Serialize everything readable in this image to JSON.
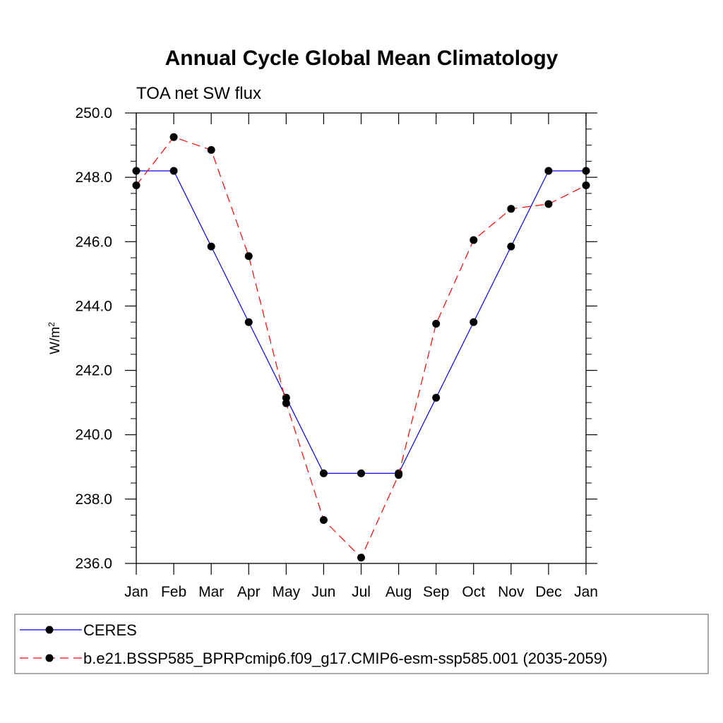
{
  "chart_data": {
    "type": "line",
    "title": "Annual Cycle Global Mean Climatology",
    "subtitle": "TOA net SW flux",
    "ylabel_base": "W/m",
    "ylabel_sup": "2",
    "xlabel": "",
    "categories": [
      "Jan",
      "Feb",
      "Mar",
      "Apr",
      "May",
      "Jun",
      "Jul",
      "Aug",
      "Sep",
      "Oct",
      "Nov",
      "Dec",
      "Jan"
    ],
    "ylim": [
      236.0,
      250.0
    ],
    "yticks": [
      "236.0",
      "238.0",
      "240.0",
      "242.0",
      "244.0",
      "246.0",
      "248.0",
      "250.0"
    ],
    "series": [
      {
        "name": "CERES",
        "color": "#0000ff",
        "dash": "solid",
        "values": [
          248.2,
          248.2,
          245.85,
          243.5,
          241.15,
          238.8,
          238.8,
          238.8,
          241.15,
          243.5,
          245.85,
          248.2,
          248.2
        ]
      },
      {
        "name": "b.e21.BSSP585_BPRPcmip6.f09_g17.CMIP6-esm-ssp585.001 (2035-2059)",
        "color": "#ff0000",
        "dash": "dashed",
        "values": [
          247.75,
          249.25,
          248.85,
          245.55,
          240.98,
          237.35,
          236.18,
          238.75,
          243.45,
          246.05,
          247.02,
          247.17,
          247.75
        ]
      }
    ],
    "legend": "bottom"
  }
}
